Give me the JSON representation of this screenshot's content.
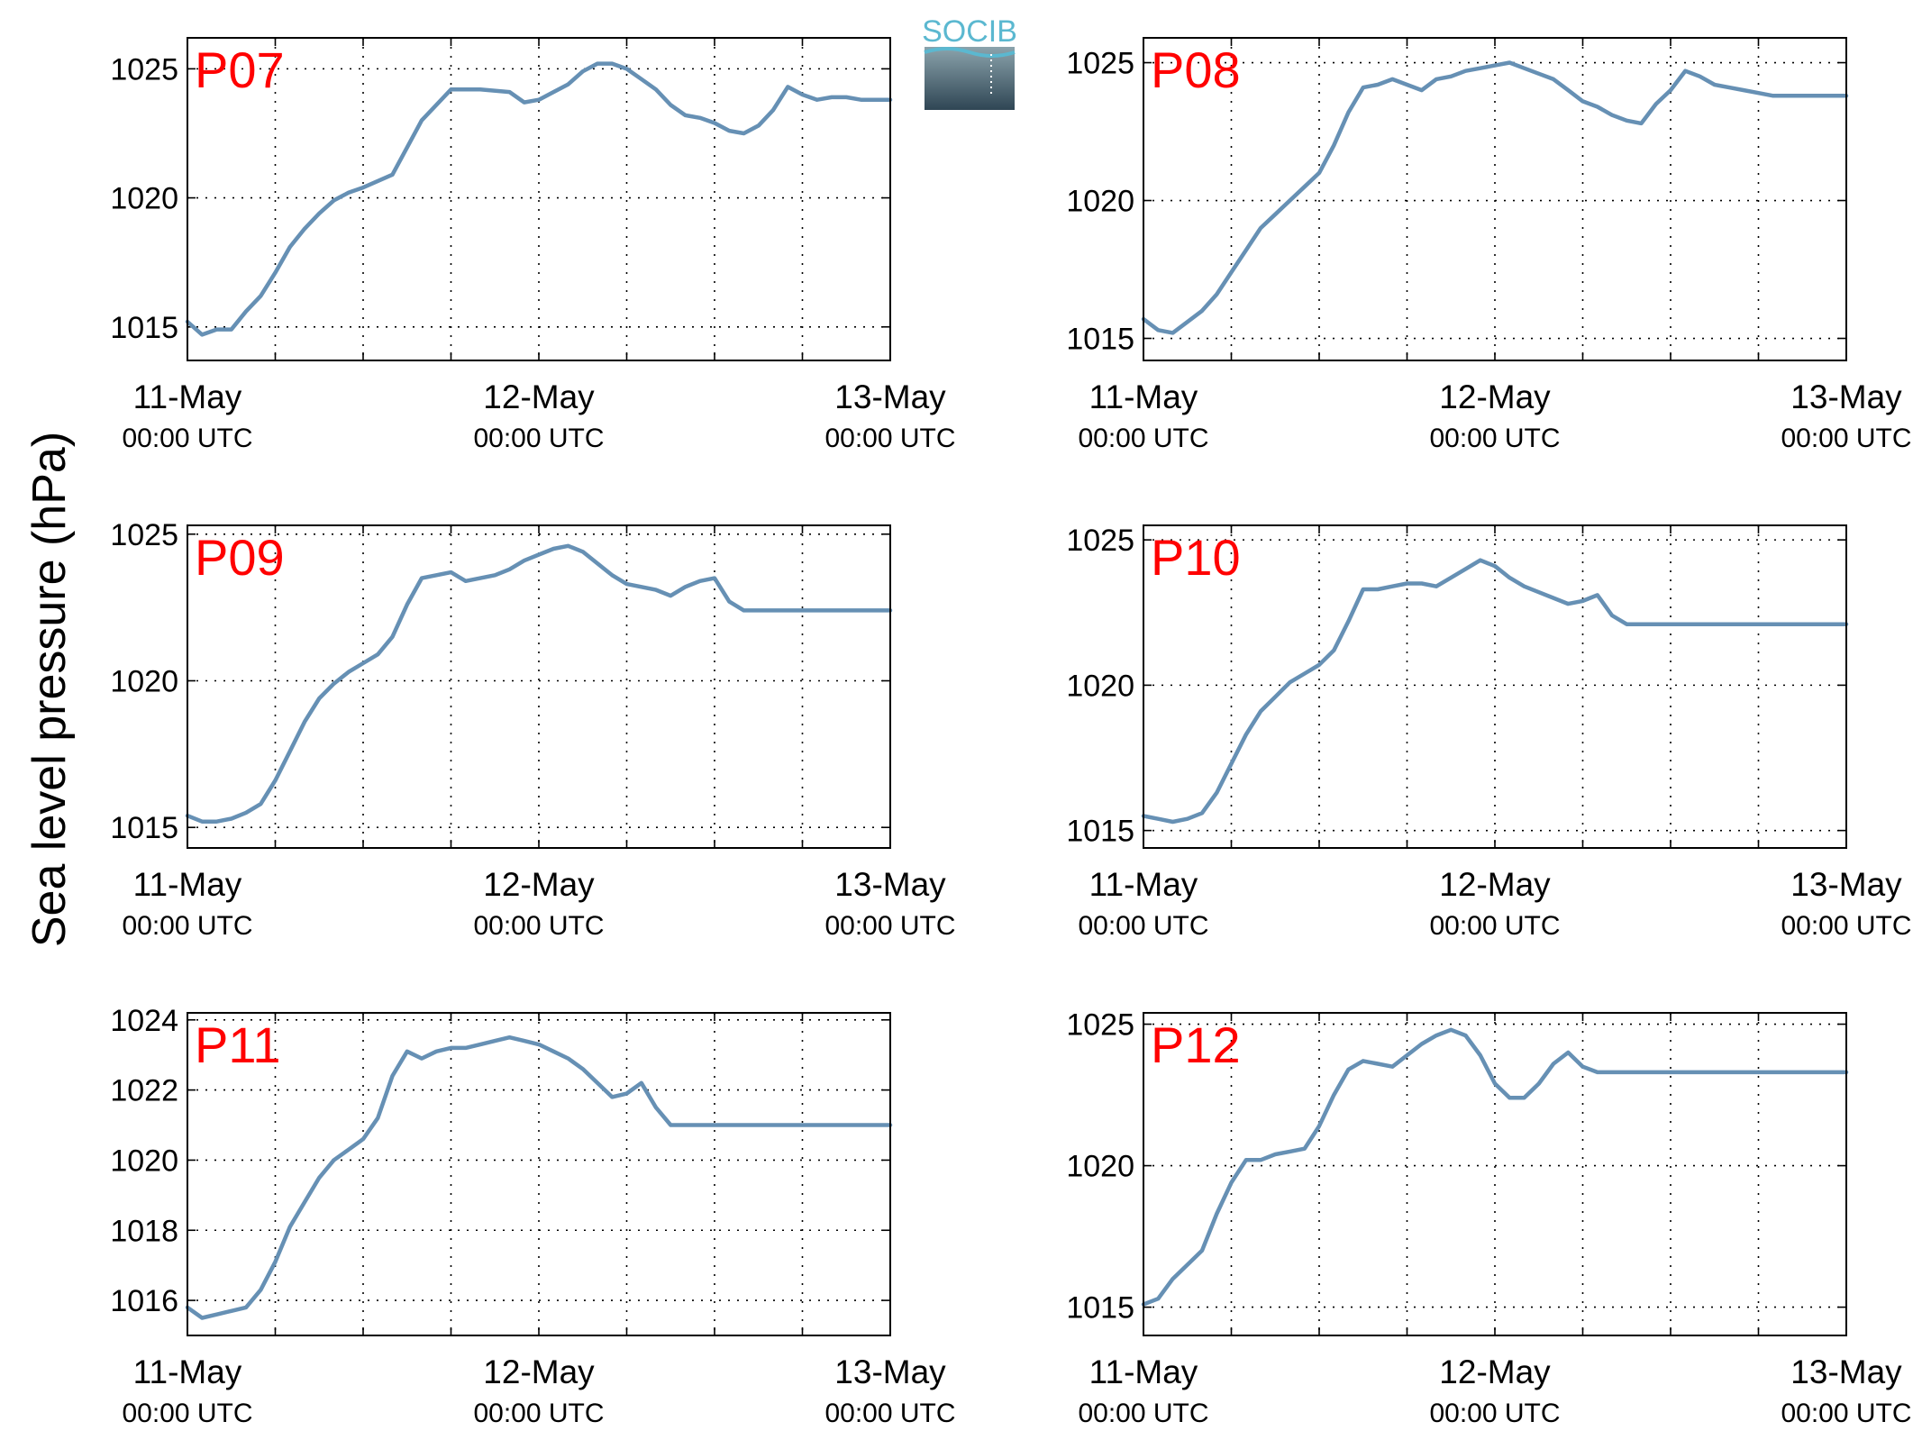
{
  "figure": {
    "ylabel": "Sea level pressure (hPa)",
    "logo_text": "SOCIB",
    "line_color": "#6690b4",
    "label_color": "#ff0000"
  },
  "chart_data": [
    {
      "type": "line",
      "station": "P07",
      "x_ticks": [
        {
          "main": "11-May",
          "sub": "00:00 UTC"
        },
        {
          "main": "12-May",
          "sub": "00:00 UTC"
        },
        {
          "main": "13-May",
          "sub": "00:00 UTC"
        }
      ],
      "x_range_hours": [
        0,
        48
      ],
      "ylim": [
        1013.7,
        1026.2
      ],
      "yticks": [
        1015,
        1020,
        1025
      ],
      "grid": true,
      "series": [
        {
          "x": [
            0,
            1,
            2,
            3,
            4,
            5,
            6,
            7,
            8,
            9,
            10,
            11,
            12,
            14,
            16,
            18,
            20,
            22,
            23,
            24,
            25,
            26,
            27,
            28,
            29,
            30,
            31,
            32,
            33,
            34,
            35,
            36,
            37,
            38,
            39,
            40,
            41,
            42,
            43,
            44,
            45,
            46,
            47,
            48
          ],
          "y": [
            1015.2,
            1014.7,
            1014.9,
            1014.9,
            1015.6,
            1016.2,
            1017.1,
            1018.1,
            1018.8,
            1019.4,
            1019.9,
            1020.2,
            1020.4,
            1020.9,
            1023.0,
            1024.2,
            1024.2,
            1024.1,
            1023.7,
            1023.8,
            1024.1,
            1024.4,
            1024.9,
            1025.2,
            1025.2,
            1025.0,
            1024.6,
            1024.2,
            1023.6,
            1023.2,
            1023.1,
            1022.9,
            1022.6,
            1022.5,
            1022.8,
            1023.4,
            1024.3,
            1024.0,
            1023.8,
            1023.9,
            1023.9,
            1023.8,
            1023.8,
            1023.8
          ]
        }
      ]
    },
    {
      "type": "line",
      "station": "P08",
      "x_ticks": [
        {
          "main": "11-May",
          "sub": "00:00 UTC"
        },
        {
          "main": "12-May",
          "sub": "00:00 UTC"
        },
        {
          "main": "13-May",
          "sub": "00:00 UTC"
        }
      ],
      "x_range_hours": [
        0,
        48
      ],
      "ylim": [
        1014.2,
        1025.9
      ],
      "yticks": [
        1015,
        1020,
        1025
      ],
      "grid": true,
      "series": [
        {
          "x": [
            0,
            1,
            2,
            3,
            4,
            5,
            6,
            7,
            8,
            9,
            10,
            11,
            12,
            13,
            14,
            15,
            16,
            17,
            18,
            19,
            20,
            21,
            22,
            23,
            24,
            25,
            26,
            27,
            28,
            29,
            30,
            31,
            32,
            33,
            34,
            35,
            36,
            37,
            38,
            39,
            40,
            41,
            42,
            43,
            44,
            45,
            46,
            47,
            48
          ],
          "y": [
            1015.7,
            1015.3,
            1015.2,
            1015.6,
            1016.0,
            1016.6,
            1017.4,
            1018.2,
            1019.0,
            1019.5,
            1020.0,
            1020.5,
            1021.0,
            1022.0,
            1023.2,
            1024.1,
            1024.2,
            1024.4,
            1024.2,
            1024.0,
            1024.4,
            1024.5,
            1024.7,
            1024.8,
            1024.9,
            1025.0,
            1024.8,
            1024.6,
            1024.4,
            1024.0,
            1023.6,
            1023.4,
            1023.1,
            1022.9,
            1022.8,
            1023.5,
            1024.0,
            1024.7,
            1024.5,
            1024.2,
            1024.1,
            1024.0,
            1023.9,
            1023.8,
            1023.8,
            1023.8,
            1023.8,
            1023.8,
            1023.8
          ]
        }
      ]
    },
    {
      "type": "line",
      "station": "P09",
      "x_ticks": [
        {
          "main": "11-May",
          "sub": "00:00 UTC"
        },
        {
          "main": "12-May",
          "sub": "00:00 UTC"
        },
        {
          "main": "13-May",
          "sub": "00:00 UTC"
        }
      ],
      "x_range_hours": [
        0,
        48
      ],
      "ylim": [
        1014.3,
        1025.3
      ],
      "yticks": [
        1015,
        1020,
        1025
      ],
      "grid": true,
      "series": [
        {
          "x": [
            0,
            1,
            2,
            3,
            4,
            5,
            6,
            7,
            8,
            9,
            10,
            11,
            12,
            13,
            14,
            15,
            16,
            17,
            18,
            19,
            20,
            21,
            22,
            23,
            24,
            25,
            26,
            27,
            28,
            29,
            30,
            31,
            32,
            33,
            34,
            35,
            36,
            37,
            38,
            39,
            40,
            41,
            42,
            43,
            44,
            45,
            46,
            47,
            48
          ],
          "y": [
            1015.4,
            1015.2,
            1015.2,
            1015.3,
            1015.5,
            1015.8,
            1016.6,
            1017.6,
            1018.6,
            1019.4,
            1019.9,
            1020.3,
            1020.6,
            1020.9,
            1021.5,
            1022.6,
            1023.5,
            1023.6,
            1023.7,
            1023.4,
            1023.5,
            1023.6,
            1023.8,
            1024.1,
            1024.3,
            1024.5,
            1024.6,
            1024.4,
            1024.0,
            1023.6,
            1023.3,
            1023.2,
            1023.1,
            1022.9,
            1023.2,
            1023.4,
            1023.5,
            1022.7,
            1022.4,
            1022.4,
            1022.4,
            1022.4,
            1022.4,
            1022.4,
            1022.4,
            1022.4,
            1022.4,
            1022.4,
            1022.4
          ]
        }
      ]
    },
    {
      "type": "line",
      "station": "P10",
      "x_ticks": [
        {
          "main": "11-May",
          "sub": "00:00 UTC"
        },
        {
          "main": "12-May",
          "sub": "00:00 UTC"
        },
        {
          "main": "13-May",
          "sub": "00:00 UTC"
        }
      ],
      "x_range_hours": [
        0,
        48
      ],
      "ylim": [
        1014.4,
        1025.5
      ],
      "yticks": [
        1015,
        1020,
        1025
      ],
      "grid": true,
      "series": [
        {
          "x": [
            0,
            1,
            2,
            3,
            4,
            5,
            6,
            7,
            8,
            9,
            10,
            11,
            12,
            13,
            14,
            15,
            16,
            17,
            18,
            19,
            20,
            21,
            22,
            23,
            24,
            25,
            26,
            27,
            28,
            29,
            30,
            31,
            32,
            33,
            34,
            35,
            36,
            37,
            38,
            39,
            40,
            41,
            42,
            43,
            44,
            45,
            46,
            47,
            48
          ],
          "y": [
            1015.5,
            1015.4,
            1015.3,
            1015.4,
            1015.6,
            1016.3,
            1017.3,
            1018.3,
            1019.1,
            1019.6,
            1020.1,
            1020.4,
            1020.7,
            1021.2,
            1022.2,
            1023.3,
            1023.3,
            1023.4,
            1023.5,
            1023.5,
            1023.4,
            1023.7,
            1024.0,
            1024.3,
            1024.1,
            1023.7,
            1023.4,
            1023.2,
            1023.0,
            1022.8,
            1022.9,
            1023.1,
            1022.4,
            1022.1,
            1022.1,
            1022.1,
            1022.1,
            1022.1,
            1022.1,
            1022.1,
            1022.1,
            1022.1,
            1022.1,
            1022.1,
            1022.1,
            1022.1,
            1022.1,
            1022.1,
            1022.1
          ]
        }
      ]
    },
    {
      "type": "line",
      "station": "P11",
      "x_ticks": [
        {
          "main": "11-May",
          "sub": "00:00 UTC"
        },
        {
          "main": "12-May",
          "sub": "00:00 UTC"
        },
        {
          "main": "13-May",
          "sub": "00:00 UTC"
        }
      ],
      "x_range_hours": [
        0,
        48
      ],
      "ylim": [
        1015.0,
        1024.2
      ],
      "yticks": [
        1016,
        1018,
        1020,
        1022,
        1024
      ],
      "grid": true,
      "series": [
        {
          "x": [
            0,
            1,
            2,
            3,
            4,
            5,
            6,
            7,
            8,
            9,
            10,
            11,
            12,
            13,
            14,
            15,
            16,
            17,
            18,
            19,
            20,
            21,
            22,
            23,
            24,
            25,
            26,
            27,
            28,
            29,
            30,
            31,
            32,
            33,
            34,
            35,
            36,
            37,
            38,
            39,
            40,
            41,
            42,
            43,
            44,
            45,
            46,
            47,
            48
          ],
          "y": [
            1015.8,
            1015.5,
            1015.6,
            1015.7,
            1015.8,
            1016.3,
            1017.1,
            1018.1,
            1018.8,
            1019.5,
            1020.0,
            1020.3,
            1020.6,
            1021.2,
            1022.4,
            1023.1,
            1022.9,
            1023.1,
            1023.2,
            1023.2,
            1023.3,
            1023.4,
            1023.5,
            1023.4,
            1023.3,
            1023.1,
            1022.9,
            1022.6,
            1022.2,
            1021.8,
            1021.9,
            1022.2,
            1021.5,
            1021.0,
            1021.0,
            1021.0,
            1021.0,
            1021.0,
            1021.0,
            1021.0,
            1021.0,
            1021.0,
            1021.0,
            1021.0,
            1021.0,
            1021.0,
            1021.0,
            1021.0,
            1021.0
          ]
        }
      ]
    },
    {
      "type": "line",
      "station": "P12",
      "x_ticks": [
        {
          "main": "11-May",
          "sub": "00:00 UTC"
        },
        {
          "main": "12-May",
          "sub": "00:00 UTC"
        },
        {
          "main": "13-May",
          "sub": "00:00 UTC"
        }
      ],
      "x_range_hours": [
        0,
        48
      ],
      "ylim": [
        1014.0,
        1025.4
      ],
      "yticks": [
        1015,
        1020,
        1025
      ],
      "grid": true,
      "series": [
        {
          "x": [
            0,
            1,
            2,
            3,
            4,
            5,
            6,
            7,
            8,
            9,
            10,
            11,
            12,
            13,
            14,
            15,
            16,
            17,
            18,
            19,
            20,
            21,
            22,
            23,
            24,
            25,
            26,
            27,
            28,
            29,
            30,
            31,
            32,
            33,
            34,
            35,
            36,
            37,
            38,
            39,
            40,
            41,
            42,
            43,
            44,
            45,
            46,
            47,
            48
          ],
          "y": [
            1015.1,
            1015.3,
            1016.0,
            1016.5,
            1017.0,
            1018.3,
            1019.4,
            1020.2,
            1020.2,
            1020.4,
            1020.5,
            1020.6,
            1021.4,
            1022.5,
            1023.4,
            1023.7,
            1023.6,
            1023.5,
            1023.9,
            1024.3,
            1024.6,
            1024.8,
            1024.6,
            1023.9,
            1022.9,
            1022.4,
            1022.4,
            1022.9,
            1023.6,
            1024.0,
            1023.5,
            1023.3,
            1023.3,
            1023.3,
            1023.3,
            1023.3,
            1023.3,
            1023.3,
            1023.3,
            1023.3,
            1023.3,
            1023.3,
            1023.3,
            1023.3,
            1023.3,
            1023.3,
            1023.3,
            1023.3,
            1023.3
          ]
        }
      ]
    }
  ]
}
